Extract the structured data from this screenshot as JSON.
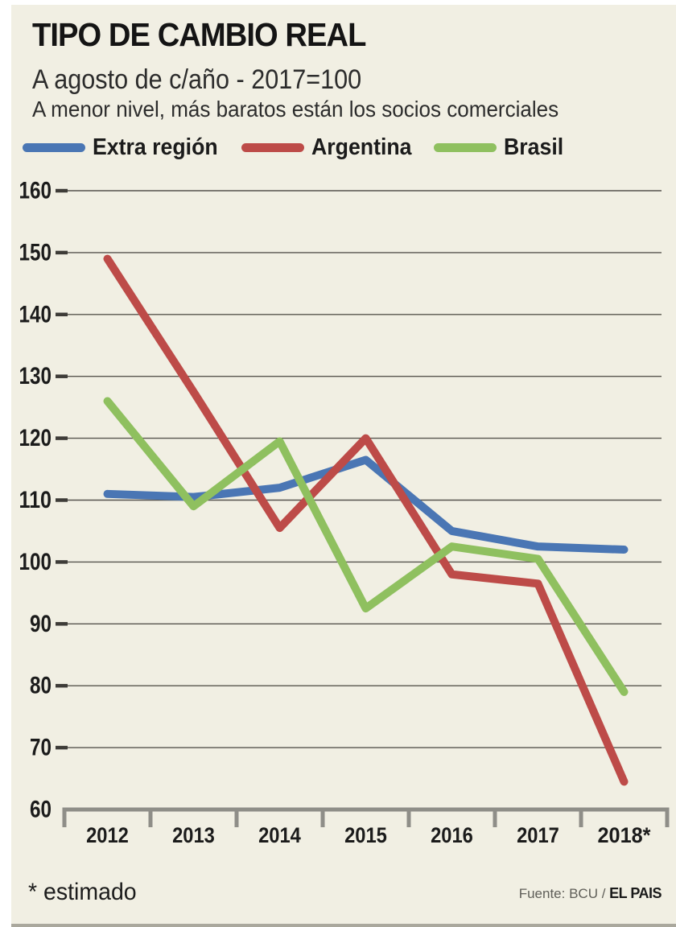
{
  "header": {
    "title": "TIPO DE CAMBIO REAL",
    "subtitle": "A agosto de c/año - 2017=100",
    "note": "A menor nivel, más baratos están los socios comerciales"
  },
  "footer": {
    "note": "* estimado",
    "source_prefix": "Fuente: BCU / ",
    "source_brand": "EL PAIS"
  },
  "colors": {
    "background": "#f1efe3",
    "grid": "#57544e",
    "axis": "#8f8e88",
    "text": "#1b1b1b",
    "extra_region": "#4a76b4",
    "argentina": "#bd4b48",
    "brasil": "#8fc05f"
  },
  "chart_data": {
    "type": "line",
    "title": "TIPO DE CAMBIO REAL",
    "xlabel": "",
    "ylabel": "",
    "categories": [
      "2012",
      "2013",
      "2014",
      "2015",
      "2016",
      "2017",
      "2018*"
    ],
    "series": [
      {
        "name": "Extra región",
        "color": "#4a76b4",
        "values": [
          111,
          110.5,
          112,
          116.5,
          105,
          102.5,
          102
        ]
      },
      {
        "name": "Argentina",
        "color": "#bd4b48",
        "values": [
          149,
          127.5,
          105.5,
          120,
          98,
          96.5,
          64.5
        ]
      },
      {
        "name": "Brasil",
        "color": "#8fc05f",
        "values": [
          126,
          109,
          119.5,
          92.5,
          102.5,
          100.5,
          79
        ]
      }
    ],
    "ylim": [
      60,
      160
    ],
    "y_ticks": [
      160,
      150,
      140,
      130,
      120,
      110,
      100,
      90,
      80,
      70,
      60
    ],
    "grid": true,
    "legend_position": "top"
  }
}
